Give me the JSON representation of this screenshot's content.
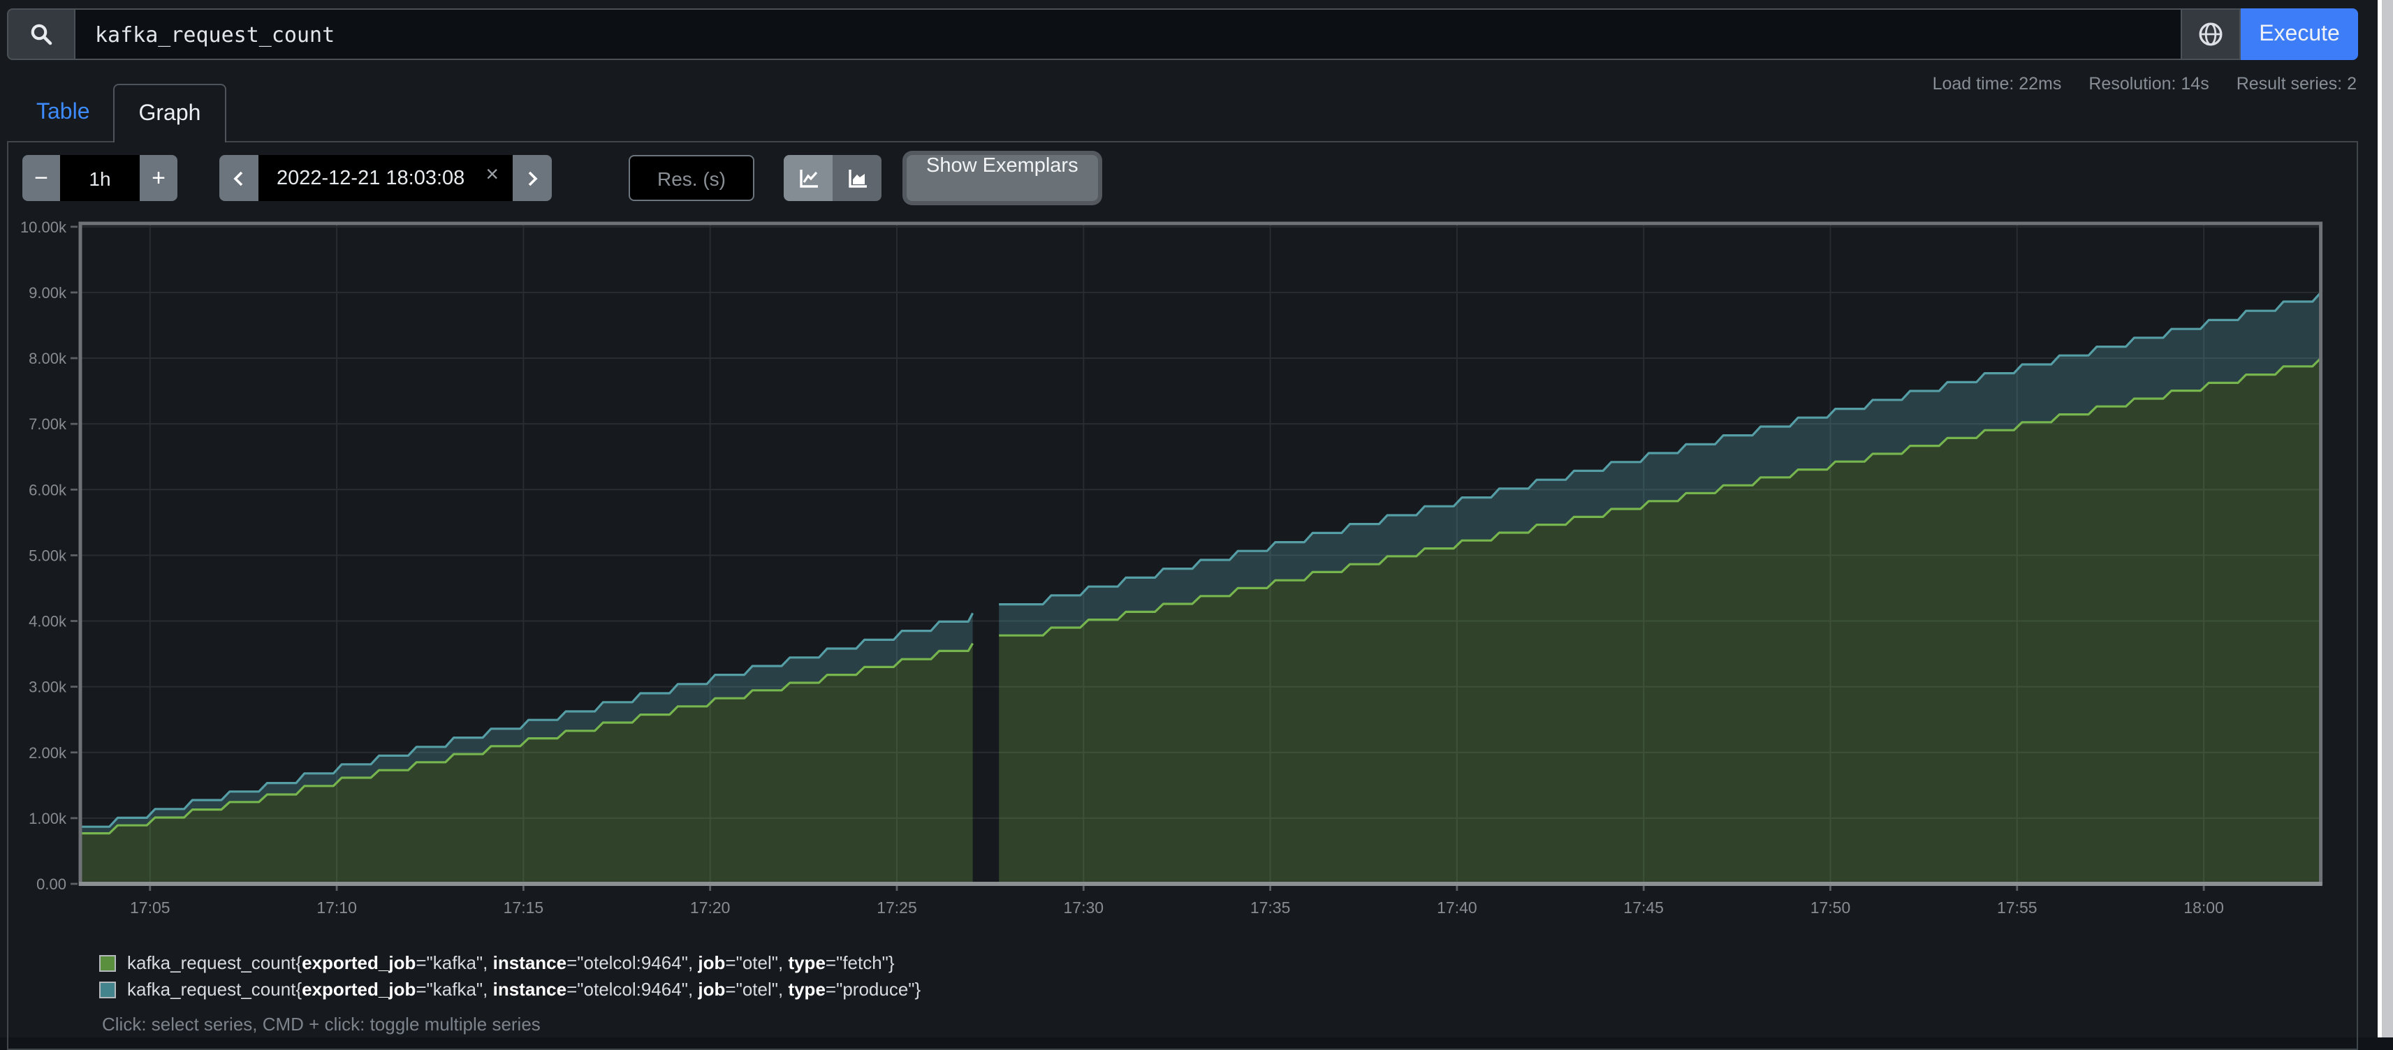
{
  "query_bar": {
    "query": "kafka_request_count",
    "execute_label": "Execute"
  },
  "stats": {
    "load_time": "Load time: 22ms",
    "resolution": "Resolution: 14s",
    "result_series": "Result series: 2"
  },
  "tabs": [
    {
      "label": "Table"
    },
    {
      "label": "Graph"
    }
  ],
  "controls": {
    "minus": "−",
    "duration": "1h",
    "plus": "+",
    "datetime": "2022-12-21 18:03:08",
    "clear": "×",
    "res_placeholder": "Res. (s)",
    "show_exemplars": "Show Exemplars"
  },
  "colors": {
    "accent_blue": "#3e7df8",
    "tab_link_blue": "#3d8bfd",
    "fetch_line": "#77b54e",
    "produce_line": "#569ea6",
    "fetch_swatch": "#5a8f3d",
    "produce_swatch": "#44858d",
    "grid": "#282d32",
    "plot_border": "#6f7377",
    "axis": "#8d9093",
    "tick_text": "#878d93"
  },
  "chart_data": {
    "type": "area",
    "stacked": true,
    "title": "kafka_request_count",
    "x_start_time": "17:03:08",
    "x_end_time": "18:03:08",
    "x_tick_start_min": 1.8667,
    "x_tick_step_min": 5,
    "x_ticks": [
      "17:05",
      "17:10",
      "17:15",
      "17:20",
      "17:25",
      "17:30",
      "17:35",
      "17:40",
      "17:45",
      "17:50",
      "17:55",
      "18:00"
    ],
    "y_ticks": [
      "0.00",
      "1.00k",
      "2.00k",
      "3.00k",
      "4.00k",
      "5.00k",
      "6.00k",
      "7.00k",
      "8.00k",
      "9.00k",
      "10.00k"
    ],
    "ylim": [
      0,
      10000
    ],
    "grid": true,
    "legend_position": "bottom",
    "sample_interval_minutes": 1,
    "gap_minutes": [
      23.9,
      24.6
    ],
    "series": [
      {
        "name": "kafka_request_count{exported_job=\"kafka\", instance=\"otelcol:9464\", job=\"otel\", type=\"fetch\"}",
        "color": "#77b54e",
        "fill_opacity": 0.27,
        "values": [
          770,
          890,
          1010,
          1130,
          1245,
          1360,
          1490,
          1615,
          1730,
          1850,
          1975,
          2095,
          2215,
          2330,
          2455,
          2575,
          2700,
          2825,
          2945,
          3060,
          3180,
          3300,
          3420,
          3545,
          3660,
          3780,
          3900,
          4020,
          4140,
          4260,
          4380,
          4500,
          4620,
          4745,
          4865,
          4985,
          5105,
          5225,
          5345,
          5465,
          5585,
          5705,
          5825,
          5945,
          6065,
          6185,
          6305,
          6425,
          6545,
          6665,
          6785,
          6905,
          7025,
          7145,
          7265,
          7385,
          7505,
          7625,
          7750,
          7875,
          8000
        ]
      },
      {
        "name": "kafka_request_count{exported_job=\"kafka\", instance=\"otelcol:9464\", job=\"otel\", type=\"produce\"}",
        "color": "#569ea6",
        "fill_opacity": 0.3,
        "values": [
          100,
          115,
          130,
          145,
          160,
          175,
          190,
          205,
          220,
          235,
          250,
          265,
          280,
          295,
          310,
          325,
          340,
          355,
          370,
          385,
          400,
          415,
          430,
          445,
          460,
          475,
          490,
          505,
          520,
          535,
          550,
          565,
          580,
          595,
          610,
          625,
          640,
          655,
          670,
          685,
          700,
          715,
          730,
          745,
          760,
          775,
          790,
          805,
          820,
          835,
          850,
          865,
          880,
          895,
          910,
          925,
          940,
          955,
          970,
          985,
          1000
        ]
      }
    ]
  },
  "legend": {
    "series": [
      {
        "metric": "kafka_request_count",
        "swatch": "#5a8f3d",
        "labels": [
          {
            "name": "exported_job",
            "value": "kafka"
          },
          {
            "name": "instance",
            "value": "otelcol:9464"
          },
          {
            "name": "job",
            "value": "otel"
          },
          {
            "name": "type",
            "value": "fetch"
          }
        ]
      },
      {
        "metric": "kafka_request_count",
        "swatch": "#44858d",
        "labels": [
          {
            "name": "exported_job",
            "value": "kafka"
          },
          {
            "name": "instance",
            "value": "otelcol:9464"
          },
          {
            "name": "job",
            "value": "otel"
          },
          {
            "name": "type",
            "value": "produce"
          }
        ]
      }
    ],
    "hint": "Click: select series, CMD + click: toggle multiple series"
  }
}
